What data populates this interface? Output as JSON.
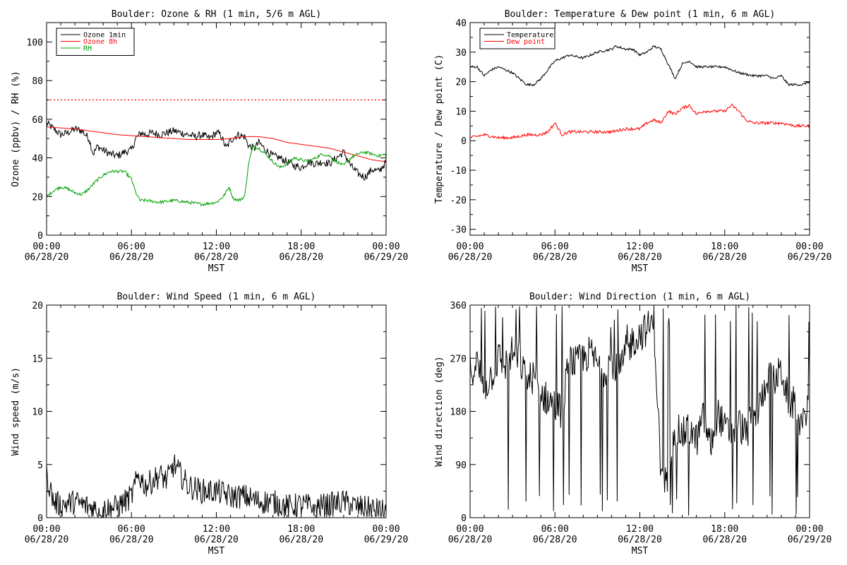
{
  "chart_data": [
    {
      "type": "line",
      "title": "Boulder: Ozone & RH (1 min, 5/6 m AGL)",
      "xlabel": "MST",
      "ylabel": "Ozone (ppbv) / RH (%)",
      "xlim": [
        0,
        24
      ],
      "ylim": [
        0,
        110
      ],
      "xticks": [
        {
          "x": 0,
          "time": "00:00",
          "date": "06/28/20"
        },
        {
          "x": 6,
          "time": "06:00",
          "date": "06/28/20"
        },
        {
          "x": 12,
          "time": "12:00",
          "date": "06/28/20"
        },
        {
          "x": 18,
          "time": "18:00",
          "date": "06/28/20"
        },
        {
          "x": 24,
          "time": "00:00",
          "date": "06/29/20"
        }
      ],
      "yticks": [
        0,
        20,
        40,
        60,
        80,
        100
      ],
      "grid": false,
      "legend_position": "top-left",
      "legend": [
        {
          "name": "Ozone 1min",
          "color": "#000000"
        },
        {
          "name": "Ozone 8h",
          "color": "#ff0000"
        },
        {
          "name": "RH",
          "color": "#00a000"
        }
      ],
      "reference_line": {
        "y": 70,
        "color": "#ff0000",
        "style": "dotted"
      },
      "series": [
        {
          "name": "Ozone 1min",
          "color": "#000000",
          "noise": 2,
          "x": [
            0,
            0.5,
            1,
            1.5,
            2,
            2.5,
            3,
            3.3,
            3.6,
            4,
            4.5,
            5,
            5.5,
            6,
            6.3,
            6.7,
            7,
            7.5,
            8,
            8.5,
            9,
            9.5,
            10,
            10.5,
            11,
            11.5,
            12,
            12.3,
            12.7,
            13,
            13.5,
            14,
            14.3,
            14.7,
            15,
            15.5,
            16,
            16.5,
            17,
            17.5,
            18,
            18.5,
            19,
            19.5,
            20,
            20.5,
            21,
            21.5,
            22,
            22.5,
            23,
            23.5,
            24
          ],
          "y": [
            58,
            55,
            52,
            53,
            55,
            54,
            50,
            42,
            46,
            44,
            42,
            41,
            43,
            44,
            50,
            53,
            52,
            53,
            52,
            53,
            54,
            53,
            52,
            51,
            52,
            50,
            53,
            52,
            45,
            49,
            52,
            51,
            46,
            45,
            48,
            44,
            41,
            40,
            38,
            36,
            35,
            38,
            37,
            38,
            37,
            40,
            43,
            36,
            32,
            30,
            34,
            33,
            38
          ]
        },
        {
          "name": "Ozone 8h",
          "color": "#ff0000",
          "noise": 0,
          "x": [
            0,
            1,
            2,
            3,
            4,
            5,
            6,
            7,
            8,
            9,
            10,
            11,
            12,
            13,
            14,
            15,
            16,
            17,
            18,
            19,
            20,
            21,
            22,
            23,
            24
          ],
          "y": [
            56,
            55.5,
            55,
            54,
            53,
            52,
            51.5,
            51,
            50.5,
            50,
            49.5,
            49.5,
            49.5,
            50,
            51,
            51,
            50,
            48,
            47,
            46,
            45,
            43,
            41,
            39,
            38
          ]
        },
        {
          "name": "RH",
          "color": "#00a000",
          "noise": 0.8,
          "x": [
            0,
            0.5,
            1,
            1.5,
            2,
            2.5,
            3,
            3.5,
            4,
            4.5,
            5,
            5.5,
            6,
            6.3,
            6.6,
            7,
            8,
            9,
            10,
            11,
            12,
            12.5,
            12.9,
            13.2,
            13.6,
            14,
            14.3,
            14.6,
            15,
            15.5,
            16,
            16.5,
            17,
            17.5,
            18,
            18.5,
            19,
            19.5,
            20,
            20.5,
            21,
            21.5,
            22,
            22.5,
            23,
            23.5,
            24
          ],
          "y": [
            20,
            23,
            25,
            24,
            22,
            21,
            24,
            28,
            31,
            33,
            33,
            33,
            29,
            22,
            18,
            18,
            17,
            18,
            17,
            16,
            17,
            20,
            25,
            19,
            18,
            20,
            38,
            46,
            45,
            42,
            38,
            35,
            37,
            40,
            39,
            38,
            40,
            42,
            41,
            38,
            36,
            40,
            42,
            43,
            42,
            41,
            42
          ]
        }
      ]
    },
    {
      "type": "line",
      "title": "Boulder: Temperature & Dew point (1 min, 6 m AGL)",
      "xlabel": "MST",
      "ylabel": "Temperature / Dew point (C)",
      "xlim": [
        0,
        24
      ],
      "ylim": [
        -32,
        40
      ],
      "xticks": [
        {
          "x": 0,
          "time": "00:00",
          "date": "06/28/20"
        },
        {
          "x": 6,
          "time": "06:00",
          "date": "06/28/20"
        },
        {
          "x": 12,
          "time": "12:00",
          "date": "06/28/20"
        },
        {
          "x": 18,
          "time": "18:00",
          "date": "06/28/20"
        },
        {
          "x": 24,
          "time": "00:00",
          "date": "06/29/20"
        }
      ],
      "yticks": [
        -30,
        -20,
        -10,
        0,
        10,
        20,
        30,
        40
      ],
      "grid": false,
      "legend_position": "top-left",
      "legend": [
        {
          "name": "Temperature",
          "color": "#000000"
        },
        {
          "name": "Dew point",
          "color": "#ff0000"
        }
      ],
      "series": [
        {
          "name": "Temperature",
          "color": "#000000",
          "noise": 0.4,
          "x": [
            0,
            0.5,
            1,
            1.5,
            2,
            3,
            4,
            4.5,
            5,
            6,
            7,
            8,
            9,
            10,
            10.3,
            11,
            11.5,
            12,
            12.5,
            13,
            13.5,
            14,
            14.5,
            15,
            15.5,
            16,
            17,
            18,
            19,
            20,
            21,
            21.5,
            22,
            22.5,
            23,
            23.5,
            24
          ],
          "y": [
            25,
            25,
            22,
            24,
            25,
            23,
            19,
            19,
            21,
            27,
            29,
            28,
            30,
            31,
            32,
            31,
            31,
            29,
            30,
            32,
            31,
            26,
            21,
            26,
            27,
            25,
            25,
            25,
            23,
            22,
            22,
            21,
            22,
            19,
            19,
            19,
            20
          ]
        },
        {
          "name": "Dew point",
          "color": "#ff0000",
          "noise": 0.5,
          "x": [
            0,
            1,
            2,
            3,
            4,
            5,
            5.5,
            6,
            6.5,
            7,
            8,
            9,
            10,
            11,
            12,
            12.5,
            13,
            13.5,
            14,
            14.5,
            15,
            15.5,
            16,
            16.5,
            17,
            18,
            18.5,
            19,
            19.5,
            20,
            21,
            22,
            23,
            24
          ],
          "y": [
            1,
            2,
            1,
            1,
            2,
            2,
            3,
            6,
            2,
            3,
            3,
            3,
            3,
            4,
            4,
            6,
            7,
            6,
            10,
            9,
            11,
            12,
            9,
            10,
            10,
            10,
            12,
            10,
            7,
            6,
            6,
            6,
            5,
            5
          ]
        }
      ]
    },
    {
      "type": "line",
      "title": "Boulder: Wind Speed (1 min, 6 m AGL)",
      "xlabel": "MST",
      "ylabel": "Wind speed (m/s)",
      "xlim": [
        0,
        24
      ],
      "ylim": [
        0,
        20
      ],
      "xticks": [
        {
          "x": 0,
          "time": "00:00",
          "date": "06/28/20"
        },
        {
          "x": 6,
          "time": "06:00",
          "date": "06/28/20"
        },
        {
          "x": 12,
          "time": "12:00",
          "date": "06/28/20"
        },
        {
          "x": 18,
          "time": "18:00",
          "date": "06/28/20"
        },
        {
          "x": 24,
          "time": "00:00",
          "date": "06/29/20"
        }
      ],
      "yticks": [
        0,
        5,
        10,
        15,
        20
      ],
      "grid": false,
      "series": [
        {
          "name": "",
          "color": "#000000",
          "noise": 1.2,
          "min": 0,
          "x": [
            0,
            0.2,
            0.5,
            1,
            2,
            3,
            4,
            5,
            5.5,
            6,
            6.5,
            7,
            7.5,
            8,
            8.5,
            9,
            9.5,
            10,
            11,
            12,
            13,
            14,
            15,
            16,
            17,
            18,
            19,
            20,
            21,
            22,
            23,
            24
          ],
          "y": [
            4,
            3,
            1.5,
            1.2,
            1.5,
            1,
            0.8,
            1,
            1.5,
            2,
            4,
            3,
            3.5,
            4,
            3.5,
            5,
            4,
            3,
            2.5,
            2.5,
            2,
            2,
            1.5,
            1.5,
            1,
            1.2,
            1,
            1.2,
            1.5,
            1,
            0.8,
            0.5
          ]
        }
      ]
    },
    {
      "type": "line",
      "title": "Boulder: Wind Direction (1 min, 6 m AGL)",
      "xlabel": "MST",
      "ylabel": "Wind direction (deg)",
      "xlim": [
        0,
        24
      ],
      "ylim": [
        0,
        360
      ],
      "xticks": [
        {
          "x": 0,
          "time": "00:00",
          "date": "06/28/20"
        },
        {
          "x": 6,
          "time": "06:00",
          "date": "06/28/20"
        },
        {
          "x": 12,
          "time": "12:00",
          "date": "06/28/20"
        },
        {
          "x": 18,
          "time": "18:00",
          "date": "06/28/20"
        },
        {
          "x": 24,
          "time": "00:00",
          "date": "06/29/20"
        }
      ],
      "yticks": [
        0,
        90,
        180,
        270,
        360
      ],
      "grid": false,
      "series": [
        {
          "name": "",
          "color": "#000000",
          "noise": 30,
          "min": 0,
          "max": 360,
          "spikes": 0.1,
          "x": [
            0,
            0.5,
            1,
            1.5,
            2,
            2.5,
            3,
            3.5,
            4,
            4.5,
            5,
            5.5,
            6,
            6.5,
            7,
            7.5,
            8,
            8.5,
            9,
            9.5,
            10,
            10.5,
            11,
            11.5,
            12,
            12.5,
            13,
            13.5,
            14,
            14.5,
            15,
            15.5,
            16,
            16.5,
            17,
            17.5,
            18,
            18.5,
            19,
            19.5,
            20,
            20.5,
            21,
            21.5,
            22,
            22.5,
            23,
            23.5,
            24
          ],
          "y": [
            250,
            260,
            220,
            240,
            270,
            260,
            280,
            270,
            230,
            240,
            210,
            200,
            190,
            180,
            270,
            260,
            270,
            280,
            260,
            250,
            270,
            240,
            280,
            300,
            310,
            320,
            330,
            70,
            60,
            150,
            140,
            150,
            130,
            170,
            120,
            180,
            150,
            140,
            160,
            140,
            170,
            190,
            240,
            230,
            250,
            200,
            190,
            150,
            220
          ]
        }
      ]
    }
  ]
}
